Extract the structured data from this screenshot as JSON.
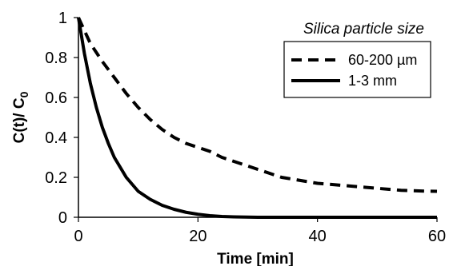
{
  "chart_data": {
    "type": "line",
    "title": "",
    "xlabel": "Time [min]",
    "ylabel_main": "C(t)/ C",
    "ylabel_sub": "0",
    "xlim": [
      0,
      60
    ],
    "ylim": [
      0,
      1
    ],
    "x_ticks": [
      "0",
      "20",
      "40",
      "60"
    ],
    "y_ticks": [
      "0",
      "0.2",
      "0.4",
      "0.6",
      "0.8",
      "1"
    ],
    "grid": false,
    "legend": {
      "title": "Silica particle size",
      "placement": "top-right"
    },
    "series": [
      {
        "name": "60-200 µm",
        "line_style": "dashed",
        "color": "#000000",
        "x": [
          0,
          2,
          4,
          6,
          8,
          10,
          12,
          14,
          16,
          18,
          20,
          22,
          24,
          26,
          28,
          30,
          32,
          34,
          36,
          38,
          40,
          42,
          44,
          46,
          48,
          50,
          52,
          54,
          56,
          58,
          60
        ],
        "y": [
          1.0,
          0.87,
          0.78,
          0.7,
          0.62,
          0.55,
          0.49,
          0.44,
          0.4,
          0.37,
          0.35,
          0.33,
          0.3,
          0.28,
          0.26,
          0.24,
          0.22,
          0.2,
          0.19,
          0.18,
          0.17,
          0.165,
          0.16,
          0.155,
          0.15,
          0.145,
          0.14,
          0.135,
          0.133,
          0.131,
          0.13
        ]
      },
      {
        "name": "1-3 mm",
        "line_style": "solid",
        "color": "#000000",
        "x": [
          0,
          1,
          2,
          3,
          4,
          5,
          6,
          7,
          8,
          9,
          10,
          12,
          14,
          16,
          18,
          20,
          22,
          24,
          26,
          28,
          30,
          40,
          50,
          60
        ],
        "y": [
          1.0,
          0.82,
          0.67,
          0.55,
          0.45,
          0.37,
          0.3,
          0.25,
          0.2,
          0.165,
          0.13,
          0.09,
          0.06,
          0.04,
          0.025,
          0.015,
          0.008,
          0.004,
          0.002,
          0.001,
          0.0,
          0.0,
          0.0,
          0.0
        ]
      }
    ]
  }
}
